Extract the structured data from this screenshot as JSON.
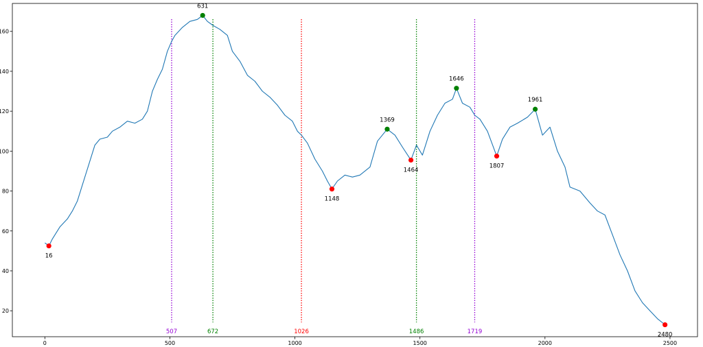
{
  "chart_data": {
    "type": "line",
    "title": "",
    "xlabel": "",
    "ylabel": "",
    "xlim": [
      -130,
      2610
    ],
    "ylim": [
      7,
      174
    ],
    "xticks": [
      0,
      500,
      1000,
      1500,
      2000,
      2500
    ],
    "yticks": [
      20,
      40,
      60,
      80,
      100,
      120,
      140,
      160
    ],
    "grid": false,
    "line_color": "#1f77b4",
    "series": [
      {
        "x": [
          0,
          16,
          30,
          60,
          90,
          110,
          130,
          160,
          180,
          200,
          220,
          250,
          270,
          300,
          330,
          360,
          390,
          410,
          430,
          450,
          470,
          490,
          507,
          520,
          550,
          580,
          610,
          631,
          650,
          672,
          700,
          730,
          750,
          780,
          810,
          840,
          870,
          900,
          930,
          960,
          990,
          1010,
          1026,
          1050,
          1080,
          1110,
          1130,
          1148,
          1170,
          1200,
          1230,
          1260,
          1300,
          1330,
          1369,
          1400,
          1430,
          1464,
          1486,
          1510,
          1540,
          1570,
          1600,
          1630,
          1646,
          1670,
          1700,
          1719,
          1740,
          1770,
          1807,
          1830,
          1860,
          1890,
          1930,
          1961,
          1990,
          2020,
          2050,
          2080,
          2100,
          2140,
          2180,
          2210,
          2240,
          2270,
          2300,
          2330,
          2360,
          2390,
          2420,
          2450,
          2480
        ],
        "y": [
          54,
          52.5,
          56,
          62,
          66,
          70,
          75,
          87,
          95,
          103,
          106,
          107,
          110,
          112,
          115,
          114,
          116,
          120,
          130,
          136,
          141,
          150,
          155,
          158,
          162,
          165,
          166,
          168,
          165,
          163,
          161,
          158,
          150,
          145,
          138,
          135,
          130,
          127,
          123,
          118,
          115,
          110,
          108,
          104,
          96,
          90,
          85,
          81,
          85,
          88,
          87,
          88,
          92,
          105,
          111,
          108,
          102,
          95.5,
          103,
          98,
          110,
          118,
          124,
          126,
          131.5,
          124,
          122,
          118,
          116,
          110,
          97.5,
          106,
          112,
          114,
          117,
          121,
          108,
          112,
          100,
          92,
          82,
          80,
          74,
          70,
          68,
          58,
          48,
          40,
          30,
          24,
          20,
          16,
          13
        ]
      }
    ],
    "peaks": [
      {
        "x": 631,
        "y": 168,
        "label": "631"
      },
      {
        "x": 1369,
        "y": 111,
        "label": "1369"
      },
      {
        "x": 1646,
        "y": 131.5,
        "label": "1646"
      },
      {
        "x": 1961,
        "y": 121,
        "label": "1961"
      }
    ],
    "troughs": [
      {
        "x": 16,
        "y": 52.5,
        "label": "16"
      },
      {
        "x": 1148,
        "y": 81,
        "label": "1148"
      },
      {
        "x": 1464,
        "y": 95.5,
        "label": "1464"
      },
      {
        "x": 1807,
        "y": 97.5,
        "label": "1807"
      },
      {
        "x": 2480,
        "y": 13,
        "label": "2480"
      }
    ],
    "vlines": [
      {
        "x": 507,
        "label": "507",
        "color": "#9400d3"
      },
      {
        "x": 672,
        "label": "672",
        "color": "#008000"
      },
      {
        "x": 1026,
        "label": "1026",
        "color": "#ff0000"
      },
      {
        "x": 1486,
        "label": "1486",
        "color": "#008000"
      },
      {
        "x": 1719,
        "label": "1719",
        "color": "#9400d3"
      }
    ],
    "peak_color": "#008000",
    "trough_color": "#ff0000"
  }
}
